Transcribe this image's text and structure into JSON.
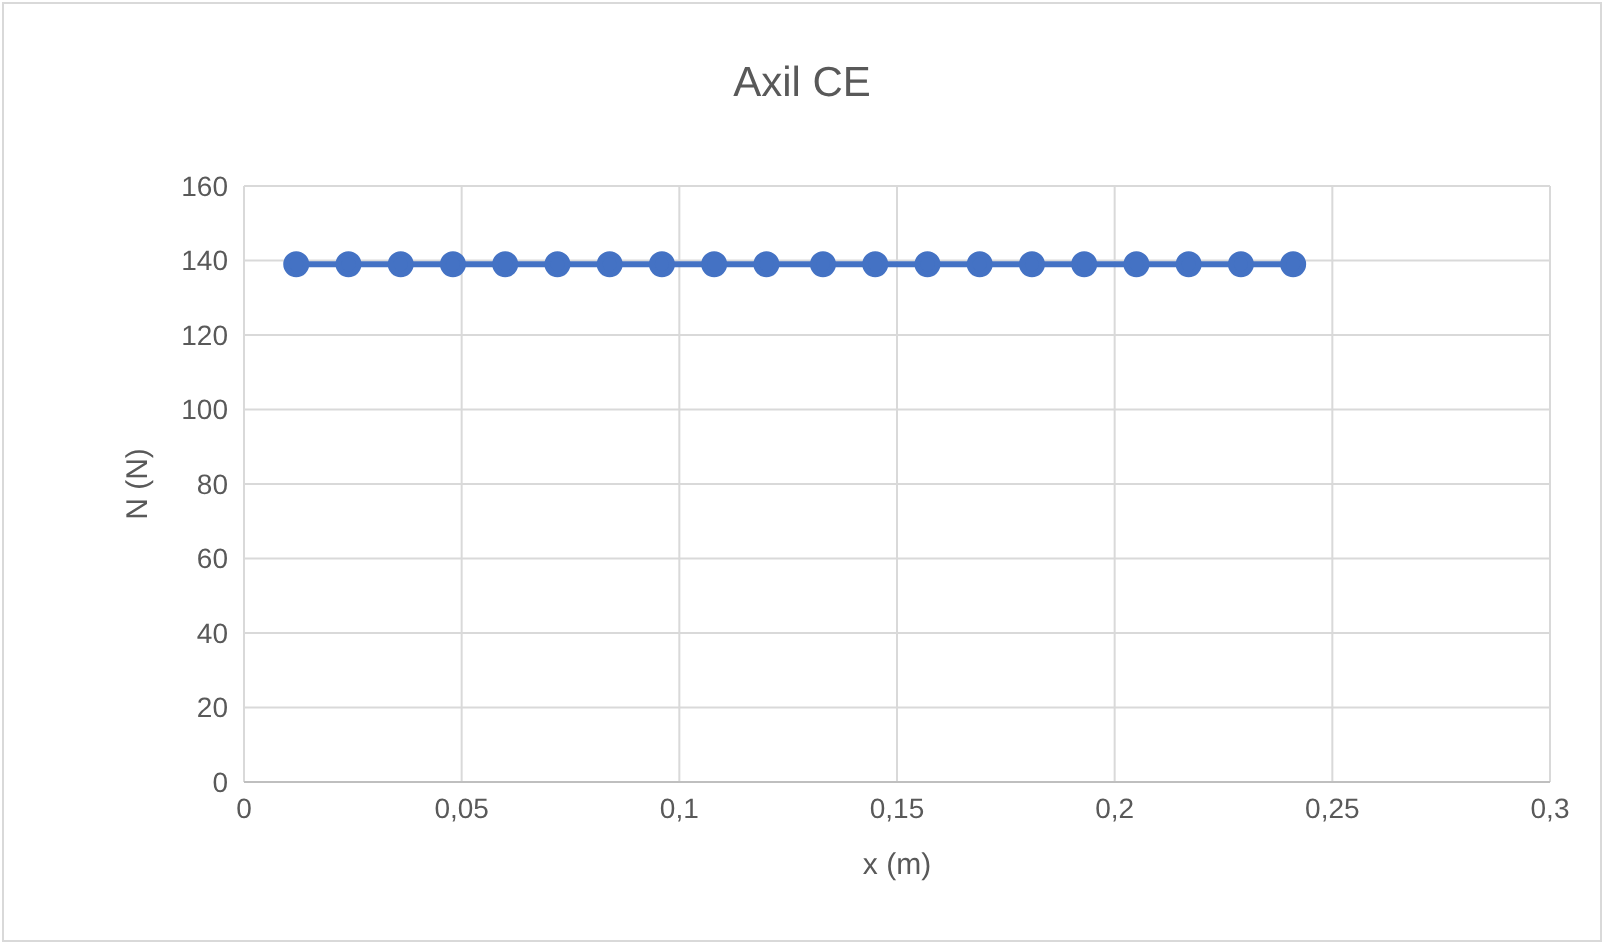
{
  "chart_data": {
    "type": "line",
    "title": "Axil CE",
    "xlabel": "x (m)",
    "ylabel": "N (N)",
    "x": [
      0.012,
      0.024,
      0.036,
      0.048,
      0.06,
      0.072,
      0.084,
      0.096,
      0.108,
      0.12,
      0.133,
      0.145,
      0.157,
      0.169,
      0.181,
      0.193,
      0.205,
      0.217,
      0.229,
      0.241
    ],
    "series": [
      {
        "color": "#4472c4",
        "values": [
          139,
          139,
          139,
          139,
          139,
          139,
          139,
          139,
          139,
          139,
          139,
          139,
          139,
          139,
          139,
          139,
          139,
          139,
          139,
          139
        ]
      }
    ],
    "xlim": [
      0,
      0.3
    ],
    "xticks": [
      0,
      {
        "value": 0.05,
        "label": "0,05"
      },
      {
        "value": 0.1,
        "label": "0,1"
      },
      {
        "value": 0.15,
        "label": "0,15"
      },
      {
        "value": 0.2,
        "label": "0,2"
      },
      {
        "value": 0.25,
        "label": "0,25"
      },
      {
        "value": 0.3,
        "label": "0,3"
      }
    ],
    "ylim": [
      0,
      160
    ],
    "yticks": [
      0,
      20,
      40,
      60,
      80,
      100,
      120,
      140,
      160
    ],
    "grid": true,
    "marker": "circle",
    "line_style": "solid",
    "legend": false
  }
}
